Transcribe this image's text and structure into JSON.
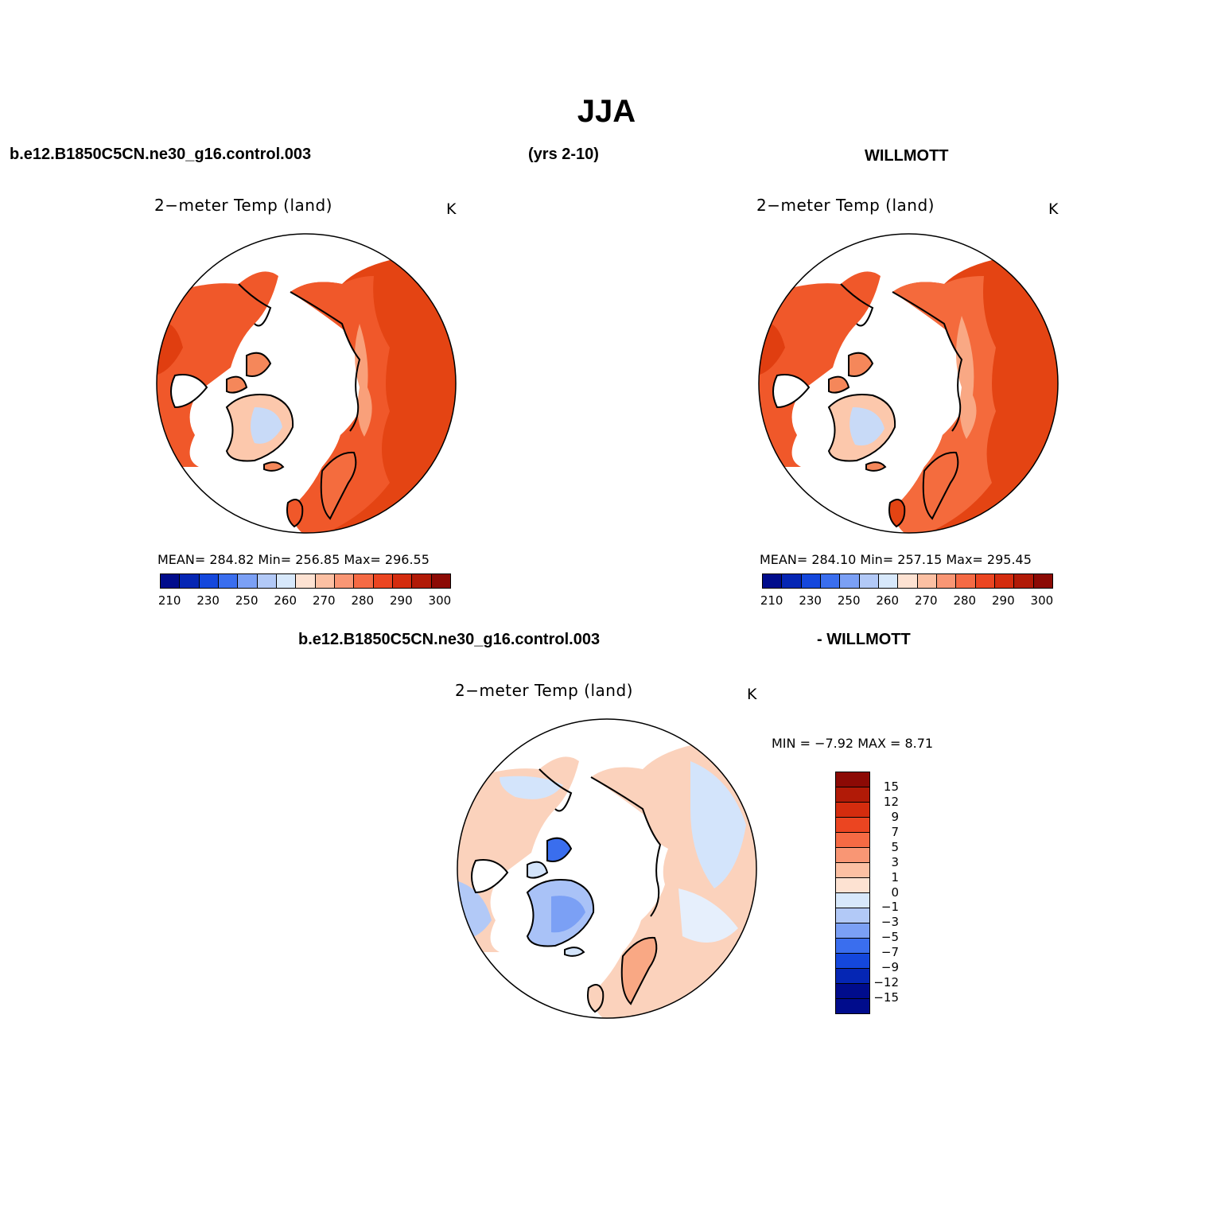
{
  "figure": {
    "title": "JJA",
    "case_name": "b.e12.B1850C5CN.ne30_g16.control.003",
    "years": "(yrs 2-10)",
    "obs_name": "WILLMOTT",
    "diff_case_name": "b.e12.B1850C5CN.ne30_g16.control.003",
    "diff_obs_name": "- WILLMOTT"
  },
  "panels": [
    {
      "id": "model",
      "title": "2−meter Temp (land)",
      "units": "K",
      "stats": "MEAN=  284.82   Min=  256.85   Max=  296.55",
      "mean": 284.82,
      "min": 256.85,
      "max": 296.55
    },
    {
      "id": "obs",
      "title": "2−meter Temp (land)",
      "units": "K",
      "stats": "MEAN=  284.10   Min=  257.15   Max=  295.45",
      "mean": 284.1,
      "min": 257.15,
      "max": 295.45
    },
    {
      "id": "diff",
      "title": "2−meter Temp (land)",
      "units": "K",
      "stats": "MIN =   −7.92  MAX =    8.71",
      "min": -7.92,
      "max": 8.71
    }
  ],
  "abs_colorbar": {
    "labels": [
      "210",
      "230",
      "250",
      "260",
      "270",
      "280",
      "290",
      "300"
    ],
    "colors": [
      "#000c8c",
      "#0526b4",
      "#1447dc",
      "#3a6eee",
      "#7ba0f5",
      "#b2c9f7",
      "#d7e8fb",
      "#fde2d2",
      "#fcc0a3",
      "#f99674",
      "#f56a44",
      "#eb4521",
      "#d42c0e",
      "#b11a07",
      "#8c0a05"
    ]
  },
  "diff_colorbar": {
    "labels": [
      "15",
      "12",
      "9",
      "7",
      "5",
      "3",
      "1",
      "0",
      "−1",
      "−3",
      "−5",
      "−7",
      "−9",
      "−12",
      "−15"
    ],
    "colors": [
      "#8c0a05",
      "#b11a07",
      "#d42c0e",
      "#eb4521",
      "#f56a44",
      "#f99674",
      "#fcc0a3",
      "#fde2d2",
      "#d7e8fb",
      "#b2c9f7",
      "#7ba0f5",
      "#3a6eee",
      "#1447dc",
      "#0526b4",
      "#000c8c",
      "#000c8c"
    ]
  },
  "legend_colors": {
    "land_warm": "#f05a2a",
    "land_hot": "#e0400f",
    "land_mild": "#f5875a",
    "greenland": "#fcc8ac",
    "ice": "#c8daf7",
    "diff_pos": "#fbd2bc",
    "diff_neg": "#d3e4fb"
  }
}
